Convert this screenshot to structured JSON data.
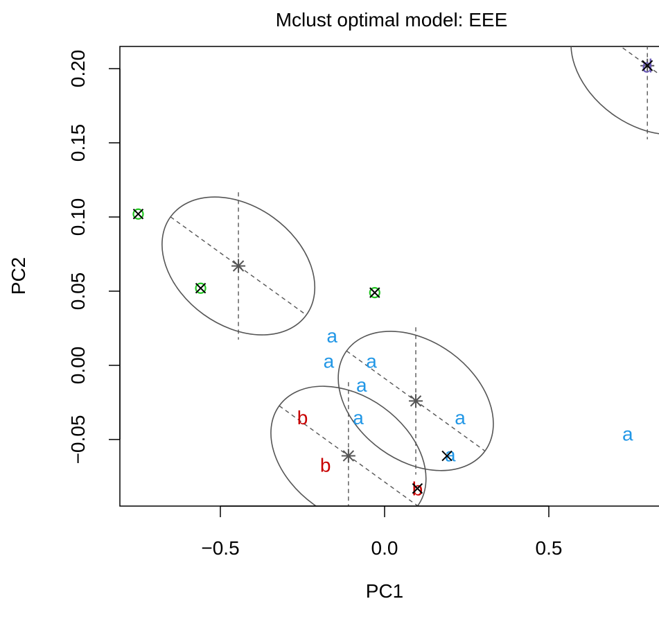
{
  "chart_data": {
    "type": "scatter",
    "title": "Mclust optimal model: EEE",
    "xlabel": "PC1",
    "ylabel": "PC2",
    "xlim": [
      -0.85,
      0.85
    ],
    "ylim": [
      -0.093,
      0.215
    ],
    "x_ticks": [
      -0.5,
      0.0,
      0.5
    ],
    "x_tick_labels": [
      "−0.5",
      "0.0",
      "0.5"
    ],
    "y_ticks": [
      -0.05,
      0.0,
      0.05,
      0.1,
      0.15,
      0.2
    ],
    "y_tick_labels": [
      "−0.05",
      "0.00",
      "0.05",
      "0.10",
      "0.15",
      "0.20"
    ],
    "grid": false,
    "colors": {
      "a": "#2297E6",
      "b": "#CD0BBC",
      "b_actual": "#C80000",
      "c": "#22C522",
      "d": "#6A5AB8",
      "ellipse": "#555555",
      "misclassified": "#000000"
    },
    "points": [
      {
        "x": -0.75,
        "y": 0.102,
        "label": "c",
        "color": "#22C522",
        "misclassified": true
      },
      {
        "x": -0.56,
        "y": 0.052,
        "label": "c",
        "color": "#22C522",
        "misclassified": true
      },
      {
        "x": -0.03,
        "y": 0.049,
        "label": "c",
        "color": "#22C522",
        "misclassified": true
      },
      {
        "x": -0.16,
        "y": 0.02,
        "label": "a",
        "color": "#2297E6",
        "misclassified": false
      },
      {
        "x": -0.17,
        "y": 0.003,
        "label": "a",
        "color": "#2297E6",
        "misclassified": false
      },
      {
        "x": -0.04,
        "y": 0.003,
        "label": "a",
        "color": "#2297E6",
        "misclassified": false
      },
      {
        "x": -0.07,
        "y": -0.013,
        "label": "a",
        "color": "#2297E6",
        "misclassified": false
      },
      {
        "x": -0.08,
        "y": -0.035,
        "label": "a",
        "color": "#2297E6",
        "misclassified": false
      },
      {
        "x": 0.23,
        "y": -0.035,
        "label": "a",
        "color": "#2297E6",
        "misclassified": false
      },
      {
        "x": 0.2,
        "y": -0.06,
        "label": "a",
        "color": "#2297E6",
        "misclassified": false
      },
      {
        "x": 0.74,
        "y": -0.046,
        "label": "a",
        "color": "#2297E6",
        "misclassified": false
      },
      {
        "x": -0.25,
        "y": -0.035,
        "label": "b",
        "color": "#C80000",
        "misclassified": false
      },
      {
        "x": -0.18,
        "y": -0.067,
        "label": "b",
        "color": "#C80000",
        "misclassified": false
      },
      {
        "x": 0.1,
        "y": -0.083,
        "label": "b",
        "color": "#C80000",
        "misclassified": false
      },
      {
        "x": 0.1,
        "y": -0.083,
        "label": "",
        "color": "#000000",
        "misclassified": true
      },
      {
        "x": 0.19,
        "y": -0.061,
        "label": "",
        "color": "#000000",
        "misclassified": true
      },
      {
        "x": 0.8,
        "y": 0.202,
        "label": "d",
        "color": "#6A5AB8",
        "misclassified": true
      }
    ],
    "clusters": [
      {
        "center": [
          -0.445,
          0.067
        ],
        "rx": 0.255,
        "ry": 0.0175,
        "angle": -0.16
      },
      {
        "center": [
          0.095,
          -0.024
        ],
        "rx": 0.26,
        "ry": 0.0175,
        "angle": -0.16
      },
      {
        "center": [
          -0.11,
          -0.061
        ],
        "rx": 0.26,
        "ry": 0.0175,
        "angle": -0.16
      },
      {
        "center": [
          0.8,
          0.202
        ],
        "rx": 0.255,
        "ry": 0.0175,
        "angle": -0.16
      }
    ]
  }
}
